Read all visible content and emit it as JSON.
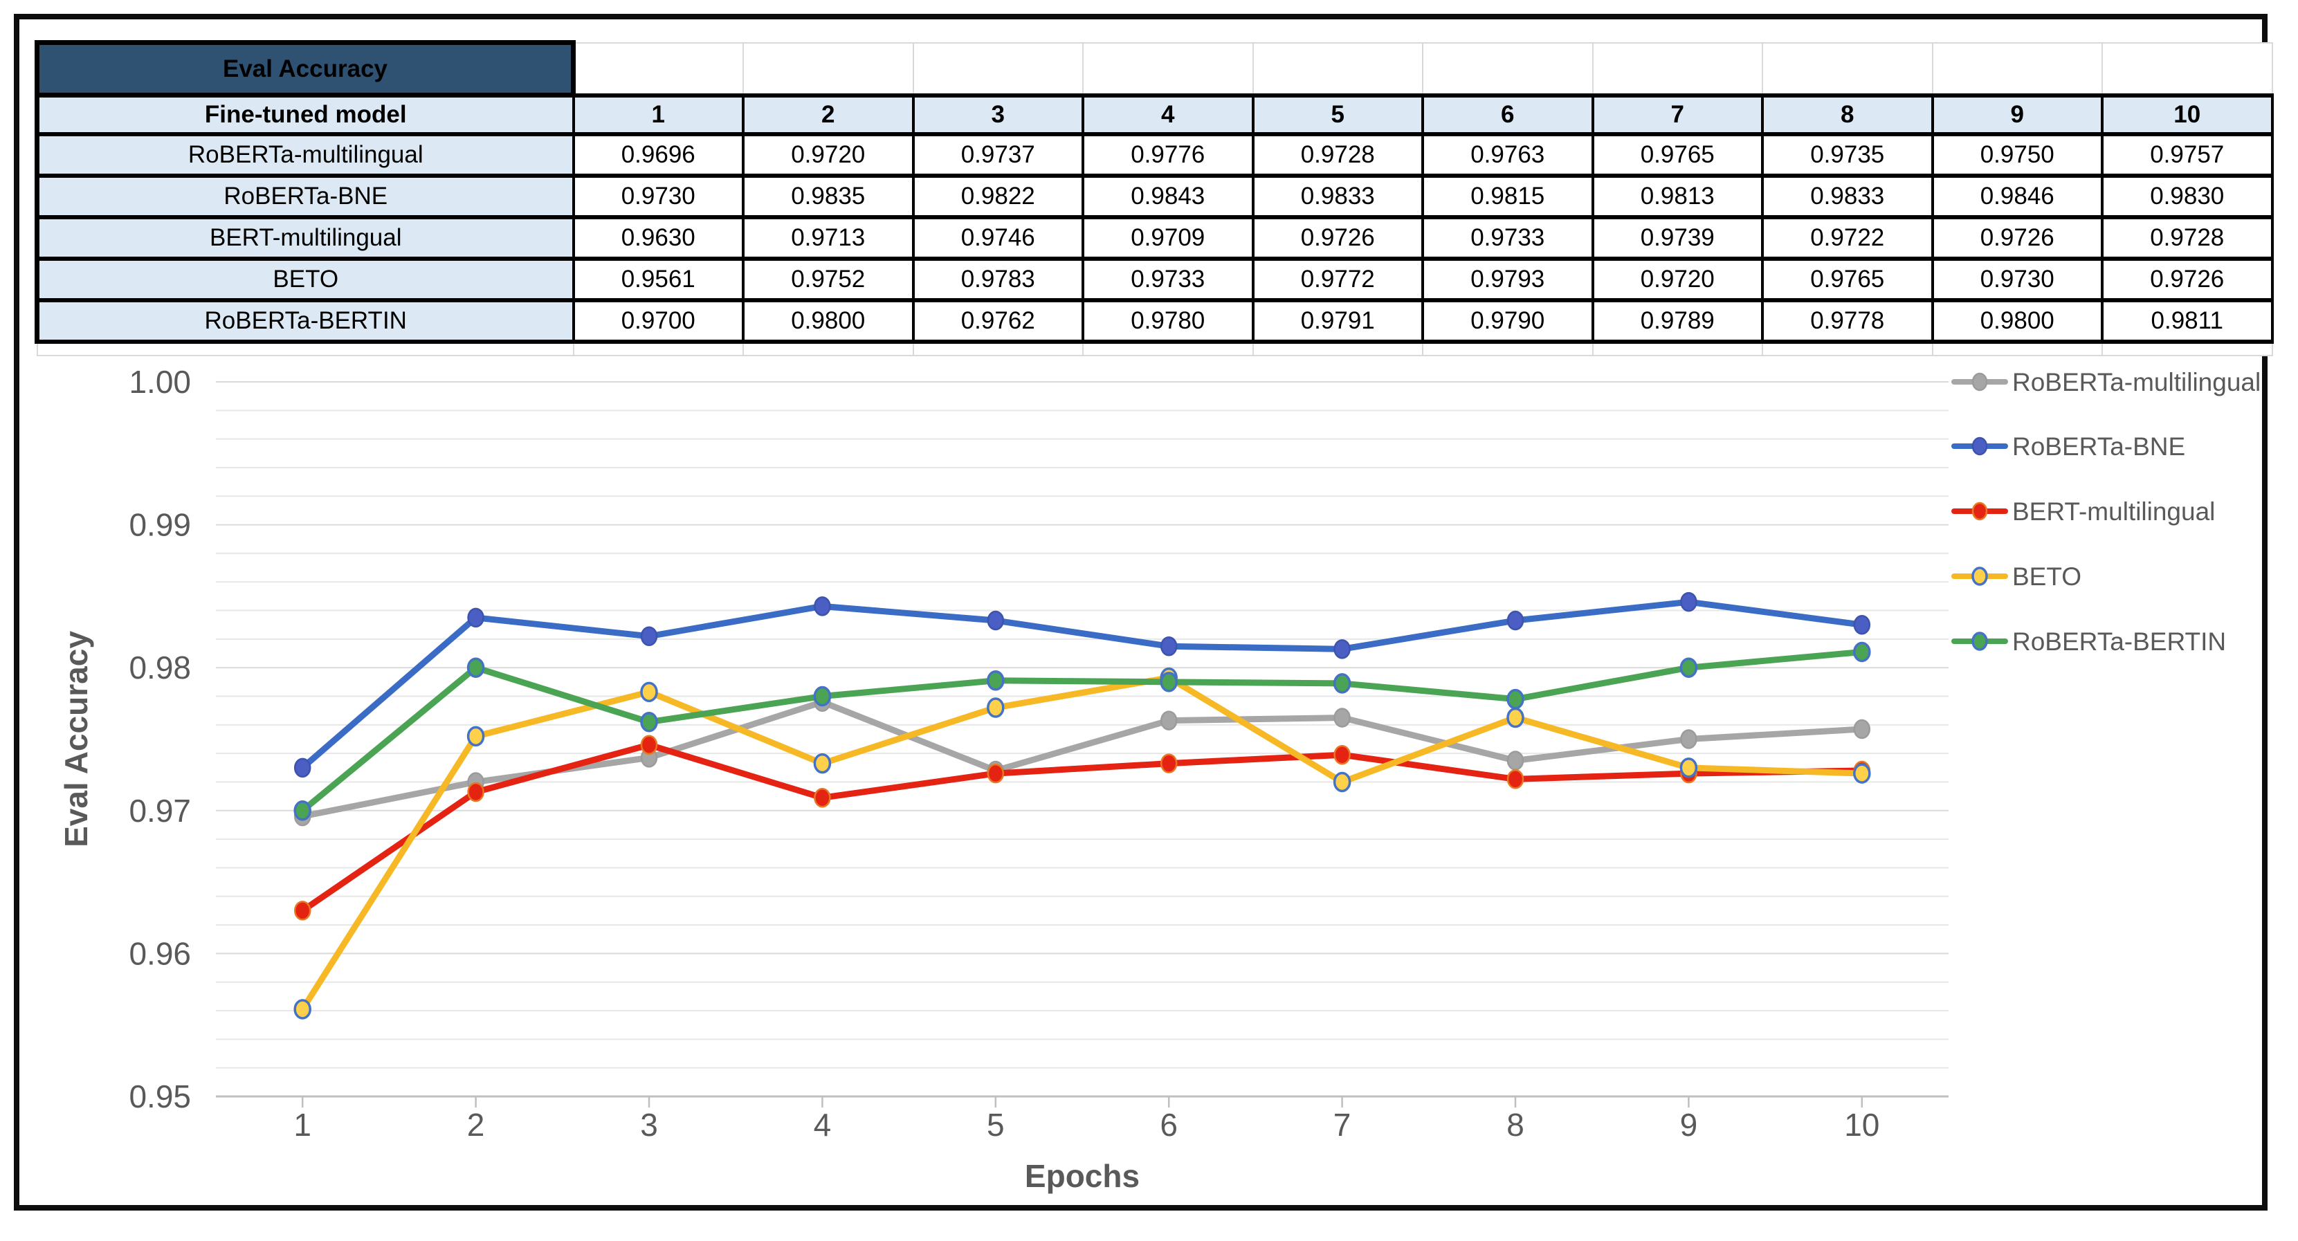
{
  "table": {
    "title": "Eval Accuracy",
    "header_label": "Fine-tuned model"
  },
  "chart_data": {
    "type": "line",
    "x": [
      1,
      2,
      3,
      4,
      5,
      6,
      7,
      8,
      9,
      10
    ],
    "xlabel": "Epochs",
    "ylabel": "Eval Accuracy",
    "ylim": [
      0.95,
      1.0
    ],
    "ytick_step": 0.01,
    "minor_grid_step": 0.002,
    "ytick_labels": [
      "1.00",
      "0.99",
      "0.98",
      "0.97",
      "0.96",
      "0.95"
    ],
    "grid": true,
    "legend_position": "right",
    "series": [
      {
        "name": "RoBERTa-multilingual",
        "color": "#a6a6a6",
        "marker_fill": "#a6a6a6",
        "marker_stroke": "#9b9b9b",
        "values": [
          0.9696,
          0.972,
          0.9737,
          0.9776,
          0.9728,
          0.9763,
          0.9765,
          0.9735,
          0.975,
          0.9757
        ]
      },
      {
        "name": "RoBERTa-BNE",
        "color": "#3a6bc5",
        "marker_fill": "#4a5ec4",
        "marker_stroke": "#3e53ae",
        "values": [
          0.973,
          0.9835,
          0.9822,
          0.9843,
          0.9833,
          0.9815,
          0.9813,
          0.9833,
          0.9846,
          0.983
        ]
      },
      {
        "name": "BERT-multilingual",
        "color": "#e42313",
        "marker_fill": "#e42313",
        "marker_stroke": "#e87722",
        "values": [
          0.963,
          0.9713,
          0.9746,
          0.9709,
          0.9726,
          0.9733,
          0.9739,
          0.9722,
          0.9726,
          0.9728
        ]
      },
      {
        "name": "BETO",
        "color": "#f7b825",
        "marker_fill": "#ffd04a",
        "marker_stroke": "#4472c4",
        "values": [
          0.9561,
          0.9752,
          0.9783,
          0.9733,
          0.9772,
          0.9793,
          0.972,
          0.9765,
          0.973,
          0.9726
        ]
      },
      {
        "name": "RoBERTa-BERTIN",
        "color": "#4ba454",
        "marker_fill": "#4ba454",
        "marker_stroke": "#4472c4",
        "values": [
          0.97,
          0.98,
          0.9762,
          0.978,
          0.9791,
          0.979,
          0.9789,
          0.9778,
          0.98,
          0.9811
        ]
      }
    ],
    "colors": {
      "axis_text": "#595959",
      "grid_minor": "#e7e7e7",
      "grid_major": "#dadada",
      "axis_line": "#bfbfbf",
      "table_title_bg": "#2f5273",
      "table_header_bg": "#dce9f5"
    }
  }
}
